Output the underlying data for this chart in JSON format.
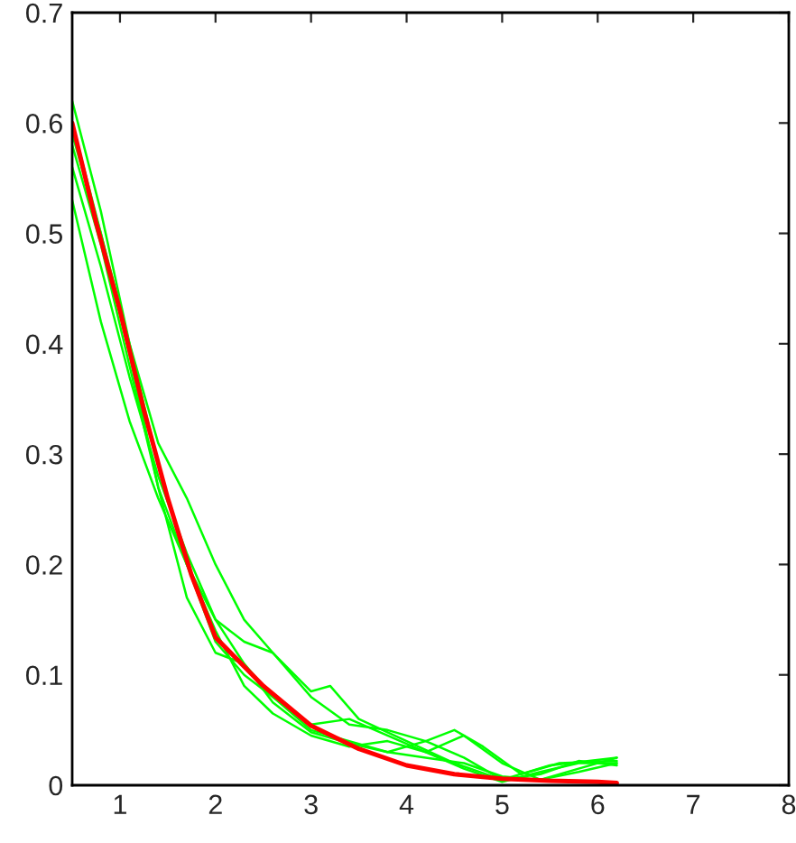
{
  "chart_data": {
    "type": "line",
    "xlim": [
      0.5,
      8
    ],
    "ylim": [
      0,
      0.7
    ],
    "xticks": [
      1,
      2,
      3,
      4,
      5,
      6,
      7,
      8
    ],
    "yticks": [
      0,
      0.1,
      0.2,
      0.3,
      0.4,
      0.5,
      0.6,
      0.7
    ],
    "grid": false,
    "legend": false,
    "marker": "none",
    "line_style": "solid",
    "series": [
      {
        "color": "#00ff00",
        "x": [
          0.5,
          0.8,
          1.1,
          1.4,
          1.7,
          2.0,
          2.3,
          2.6,
          3.0,
          3.2,
          3.5,
          4.0,
          4.5,
          5.0,
          5.5,
          6.2
        ],
        "values": [
          0.62,
          0.52,
          0.4,
          0.31,
          0.26,
          0.2,
          0.15,
          0.12,
          0.085,
          0.09,
          0.06,
          0.04,
          0.02,
          0.005,
          0.018,
          0.025
        ]
      },
      {
        "color": "#00ff00",
        "x": [
          0.5,
          0.8,
          1.1,
          1.4,
          1.7,
          2.0,
          2.3,
          2.6,
          3.0,
          3.4,
          3.8,
          4.2,
          4.5,
          4.8,
          5.2,
          5.6,
          6.2
        ],
        "values": [
          0.53,
          0.42,
          0.33,
          0.26,
          0.2,
          0.15,
          0.13,
          0.12,
          0.08,
          0.055,
          0.05,
          0.04,
          0.05,
          0.035,
          0.01,
          0.02,
          0.022
        ]
      },
      {
        "color": "#00ff00",
        "x": [
          0.5,
          0.8,
          1.1,
          1.4,
          1.7,
          2.0,
          2.3,
          2.6,
          3.0,
          3.4,
          3.8,
          4.2,
          4.6,
          5.0,
          5.4,
          5.8,
          6.2
        ],
        "values": [
          0.6,
          0.5,
          0.39,
          0.27,
          0.17,
          0.12,
          0.11,
          0.08,
          0.055,
          0.06,
          0.045,
          0.03,
          0.045,
          0.02,
          0.005,
          0.015,
          0.025
        ]
      },
      {
        "color": "#00ff00",
        "x": [
          0.5,
          0.8,
          1.1,
          1.4,
          1.7,
          2.0,
          2.3,
          2.6,
          3.0,
          3.4,
          3.8,
          4.2,
          4.6,
          5.0,
          5.4,
          5.8,
          6.2
        ],
        "values": [
          0.59,
          0.5,
          0.4,
          0.29,
          0.2,
          0.13,
          0.1,
          0.08,
          0.05,
          0.04,
          0.03,
          0.04,
          0.025,
          0.005,
          0.01,
          0.022,
          0.018
        ]
      },
      {
        "color": "#00ff00",
        "x": [
          0.5,
          0.8,
          1.1,
          1.4,
          1.7,
          2.0,
          2.3,
          2.6,
          3.0,
          3.4,
          3.8,
          4.2,
          4.6,
          5.0,
          5.4,
          5.8,
          6.2
        ],
        "values": [
          0.58,
          0.49,
          0.38,
          0.27,
          0.2,
          0.14,
          0.09,
          0.065,
          0.045,
          0.035,
          0.04,
          0.03,
          0.015,
          0.003,
          0.012,
          0.02,
          0.02
        ]
      },
      {
        "color": "#00ff00",
        "x": [
          0.5,
          0.8,
          1.1,
          1.4,
          1.7,
          2.0,
          2.3,
          2.6,
          3.0,
          3.4,
          3.8,
          4.2,
          4.6,
          5.0,
          5.4,
          5.8,
          6.2
        ],
        "values": [
          0.56,
          0.47,
          0.37,
          0.28,
          0.21,
          0.15,
          0.11,
          0.075,
          0.048,
          0.038,
          0.03,
          0.025,
          0.02,
          0.008,
          0.005,
          0.012,
          0.02
        ]
      },
      {
        "color": "#ff0000",
        "x": [
          0.5,
          0.75,
          1.0,
          1.25,
          1.5,
          1.75,
          2.0,
          2.5,
          3.0,
          3.5,
          4.0,
          4.5,
          5.0,
          5.5,
          6.0,
          6.2
        ],
        "values": [
          0.6,
          0.51,
          0.43,
          0.34,
          0.26,
          0.19,
          0.134,
          0.09,
          0.054,
          0.033,
          0.018,
          0.01,
          0.006,
          0.004,
          0.003,
          0.002
        ]
      }
    ]
  }
}
